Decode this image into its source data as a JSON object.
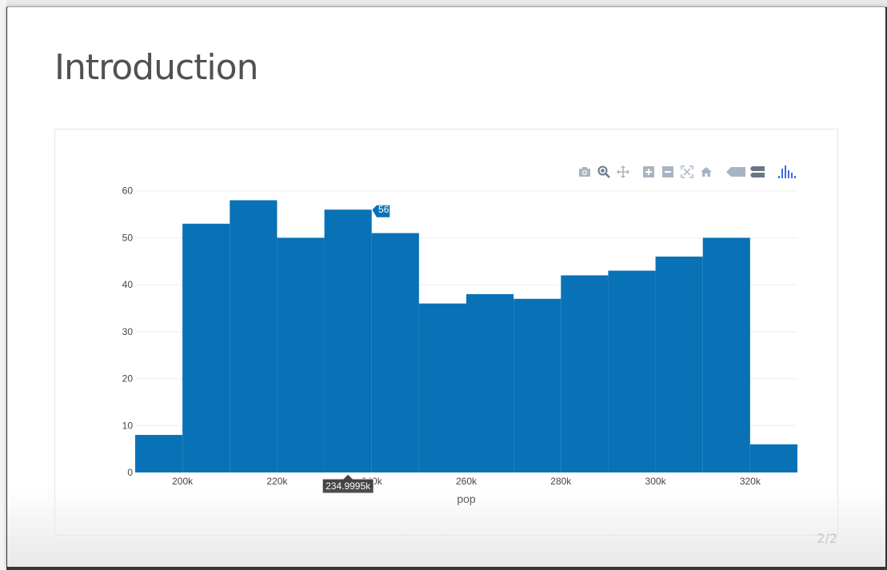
{
  "slide": {
    "title": "Introduction",
    "page_number": "2/2"
  },
  "modebar": {
    "buttons": [
      {
        "icon": "camera-icon",
        "name": "download-plot-button"
      },
      {
        "icon": "zoom-icon",
        "name": "zoom-button"
      },
      {
        "icon": "pan-icon",
        "name": "pan-button"
      },
      {
        "icon": "zoom-in-icon",
        "name": "zoom-in-button"
      },
      {
        "icon": "zoom-out-icon",
        "name": "zoom-out-button"
      },
      {
        "icon": "autoscale-icon",
        "name": "autoscale-button"
      },
      {
        "icon": "home-icon",
        "name": "reset-axes-button"
      },
      {
        "icon": "spike-tag-icon",
        "name": "hover-closest-button"
      },
      {
        "icon": "compare-icon",
        "name": "hover-compare-button"
      },
      {
        "icon": "plotly-logo-icon",
        "name": "plotly-logo"
      }
    ],
    "active_color": "#3d6be0",
    "inactive_color": "#a9b4c2"
  },
  "chart_data": {
    "type": "bar",
    "xlabel": "pop",
    "ylabel": "",
    "ylim": [
      0,
      62
    ],
    "xlim": [
      190000,
      330000
    ],
    "bin_width": 10000,
    "bar_color": "#0972b6",
    "yticks": [
      0,
      10,
      20,
      30,
      40,
      50,
      60
    ],
    "xticks": [
      {
        "value": 200000,
        "label": "200k"
      },
      {
        "value": 220000,
        "label": "220k"
      },
      {
        "value": 240000,
        "label": "240k"
      },
      {
        "value": 260000,
        "label": "260k"
      },
      {
        "value": 280000,
        "label": "280k"
      },
      {
        "value": 300000,
        "label": "300k"
      },
      {
        "value": 320000,
        "label": "320k"
      }
    ],
    "bins": [
      {
        "x0": 190000,
        "x1": 200000,
        "value": 8
      },
      {
        "x0": 200000,
        "x1": 210000,
        "value": 53
      },
      {
        "x0": 210000,
        "x1": 220000,
        "value": 58
      },
      {
        "x0": 220000,
        "x1": 230000,
        "value": 50
      },
      {
        "x0": 230000,
        "x1": 240000,
        "value": 56
      },
      {
        "x0": 240000,
        "x1": 250000,
        "value": 51
      },
      {
        "x0": 250000,
        "x1": 260000,
        "value": 36
      },
      {
        "x0": 260000,
        "x1": 270000,
        "value": 38
      },
      {
        "x0": 270000,
        "x1": 280000,
        "value": 37
      },
      {
        "x0": 280000,
        "x1": 290000,
        "value": 42
      },
      {
        "x0": 290000,
        "x1": 300000,
        "value": 43
      },
      {
        "x0": 300000,
        "x1": 310000,
        "value": 46
      },
      {
        "x0": 310000,
        "x1": 320000,
        "value": 50
      },
      {
        "x0": 320000,
        "x1": 330000,
        "value": 6
      }
    ],
    "hover": {
      "y_label": "56",
      "x_label": "234.9995k",
      "x_value": 234999.5,
      "y_value": 56
    }
  }
}
